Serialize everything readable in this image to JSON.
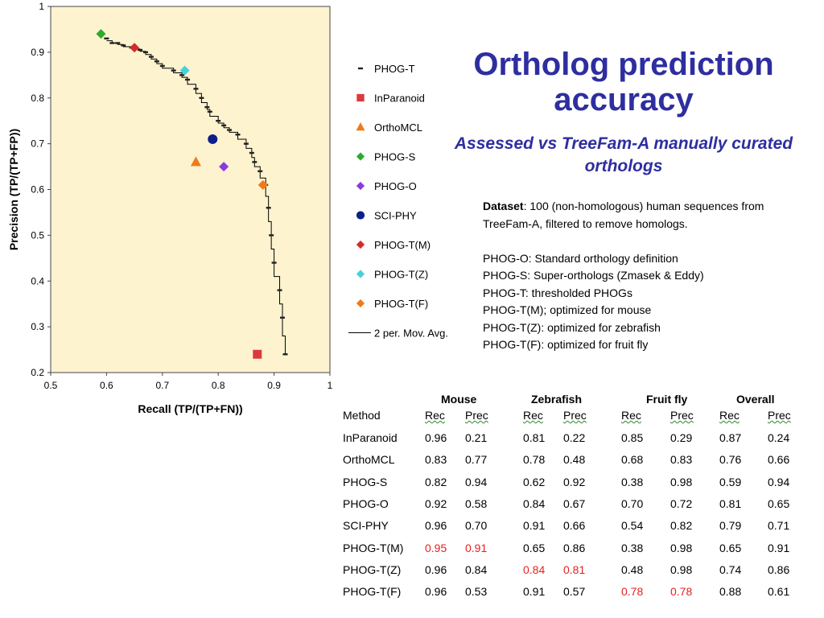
{
  "chart_data": {
    "type": "scatter",
    "xlabel": "Recall (TP/(TP+FN))",
    "ylabel": "Precision (TP/(TP+FP))",
    "xlim": [
      0.5,
      1
    ],
    "ylim": [
      0.2,
      1
    ],
    "x_ticks": [
      "0.5",
      "0.6",
      "0.7",
      "0.8",
      "0.9",
      "1"
    ],
    "y_ticks": [
      "0.2",
      "0.3",
      "0.4",
      "0.5",
      "0.6",
      "0.7",
      "0.8",
      "0.9",
      "1"
    ],
    "plot_background": "#fdf3cf",
    "legend_position": "right",
    "series": [
      {
        "name": "PHOG-T",
        "marker": "dash",
        "color": "#222222",
        "x": [
          0.6,
          0.61,
          0.62,
          0.63,
          0.645,
          0.66,
          0.67,
          0.68,
          0.69,
          0.7,
          0.72,
          0.735,
          0.745,
          0.76,
          0.77,
          0.78,
          0.785,
          0.8,
          0.81,
          0.82,
          0.835,
          0.85,
          0.86,
          0.865,
          0.875,
          0.885,
          0.89,
          0.895,
          0.9,
          0.91,
          0.915,
          0.92
        ],
        "y": [
          0.93,
          0.92,
          0.92,
          0.915,
          0.91,
          0.905,
          0.9,
          0.89,
          0.88,
          0.87,
          0.86,
          0.85,
          0.84,
          0.82,
          0.8,
          0.78,
          0.77,
          0.75,
          0.74,
          0.73,
          0.72,
          0.7,
          0.68,
          0.66,
          0.64,
          0.61,
          0.56,
          0.5,
          0.44,
          0.38,
          0.32,
          0.24
        ]
      },
      {
        "name": "InParanoid",
        "marker": "square",
        "color": "#d93b3b",
        "x": [
          0.87
        ],
        "y": [
          0.24
        ]
      },
      {
        "name": "OrthoMCL",
        "marker": "triangle",
        "color": "#f07a1a",
        "x": [
          0.76
        ],
        "y": [
          0.66
        ]
      },
      {
        "name": "PHOG-S",
        "marker": "diamond",
        "color": "#2eaa2e",
        "x": [
          0.59
        ],
        "y": [
          0.94
        ]
      },
      {
        "name": "PHOG-O",
        "marker": "diamond",
        "color": "#8a3ae0",
        "x": [
          0.81
        ],
        "y": [
          0.65
        ]
      },
      {
        "name": "SCI-PHY",
        "marker": "circle",
        "color": "#0c1f8a",
        "x": [
          0.79
        ],
        "y": [
          0.71
        ]
      },
      {
        "name": "PHOG-T(M)",
        "marker": "diamond",
        "color": "#d42b2b",
        "x": [
          0.65
        ],
        "y": [
          0.91
        ]
      },
      {
        "name": "PHOG-T(Z)",
        "marker": "diamond",
        "color": "#48d0d8",
        "x": [
          0.74
        ],
        "y": [
          0.86
        ]
      },
      {
        "name": "PHOG-T(F)",
        "marker": "diamond",
        "color": "#f07a1a",
        "x": [
          0.88
        ],
        "y": [
          0.61
        ]
      },
      {
        "name": "2 per. Mov. Avg.",
        "marker": "line",
        "color": "#000000",
        "x": [
          0.6,
          0.61,
          0.62,
          0.63,
          0.645,
          0.66,
          0.67,
          0.68,
          0.69,
          0.7,
          0.72,
          0.735,
          0.745,
          0.76,
          0.77,
          0.78,
          0.785,
          0.8,
          0.81,
          0.82,
          0.835,
          0.85,
          0.86,
          0.865,
          0.875,
          0.885,
          0.89,
          0.895,
          0.9,
          0.91,
          0.915,
          0.92
        ],
        "y": [
          0.925,
          0.92,
          0.917,
          0.912,
          0.907,
          0.902,
          0.895,
          0.885,
          0.875,
          0.865,
          0.855,
          0.845,
          0.83,
          0.81,
          0.79,
          0.775,
          0.76,
          0.745,
          0.735,
          0.725,
          0.71,
          0.69,
          0.67,
          0.65,
          0.625,
          0.585,
          0.53,
          0.47,
          0.41,
          0.35,
          0.28,
          0.24
        ]
      }
    ]
  },
  "title": "Ortholog prediction accuracy",
  "subtitle": "Assessed vs TreeFam-A manually curated orthologs",
  "notes": {
    "dataset_label": "Dataset",
    "dataset_text": ": 100 (non-homologous) human sequences from TreeFam-A, filtered to remove homologs.",
    "definitions": [
      "PHOG-O: Standard orthology definition",
      "PHOG-S: Super-orthologs (Zmasek & Eddy)",
      "PHOG-T: thresholded PHOGs",
      "PHOG-T(M); optimized for mouse",
      "PHOG-T(Z): optimized for zebrafish",
      "PHOG-T(F): optimized for fruit fly"
    ]
  },
  "table": {
    "groups": [
      "Mouse",
      "Zebrafish",
      "Fruit fly",
      "Overall"
    ],
    "columns": [
      "Method",
      "Rec",
      "Prec",
      "Rec",
      "Prec",
      "Rec",
      "Prec",
      "Rec",
      "Prec"
    ],
    "highlight_color": "#e8201e",
    "rows": [
      {
        "cells": [
          "InParanoid",
          "0.96",
          "0.21",
          "0.81",
          "0.22",
          "0.85",
          "0.29",
          "0.87",
          "0.24"
        ],
        "highlight": []
      },
      {
        "cells": [
          "OrthoMCL",
          "0.83",
          "0.77",
          "0.78",
          "0.48",
          "0.68",
          "0.83",
          "0.76",
          "0.66"
        ],
        "highlight": []
      },
      {
        "cells": [
          "PHOG-S",
          "0.82",
          "0.94",
          "0.62",
          "0.92",
          "0.38",
          "0.98",
          "0.59",
          "0.94"
        ],
        "highlight": []
      },
      {
        "cells": [
          "PHOG-O",
          "0.92",
          "0.58",
          "0.84",
          "0.67",
          "0.70",
          "0.72",
          "0.81",
          "0.65"
        ],
        "highlight": []
      },
      {
        "cells": [
          "SCI-PHY",
          "0.96",
          "0.70",
          "0.91",
          "0.66",
          "0.54",
          "0.82",
          "0.79",
          "0.71"
        ],
        "highlight": []
      },
      {
        "cells": [
          "PHOG-T(M)",
          "0.95",
          "0.91",
          "0.65",
          "0.86",
          "0.38",
          "0.98",
          "0.65",
          "0.91"
        ],
        "highlight": [
          1,
          2
        ]
      },
      {
        "cells": [
          "PHOG-T(Z)",
          "0.96",
          "0.84",
          "0.84",
          "0.81",
          "0.48",
          "0.98",
          "0.74",
          "0.86"
        ],
        "highlight": [
          3,
          4
        ]
      },
      {
        "cells": [
          "PHOG-T(F)",
          "0.96",
          "0.53",
          "0.91",
          "0.57",
          "0.78",
          "0.78",
          "0.88",
          "0.61"
        ],
        "highlight": [
          5,
          6
        ]
      }
    ]
  }
}
